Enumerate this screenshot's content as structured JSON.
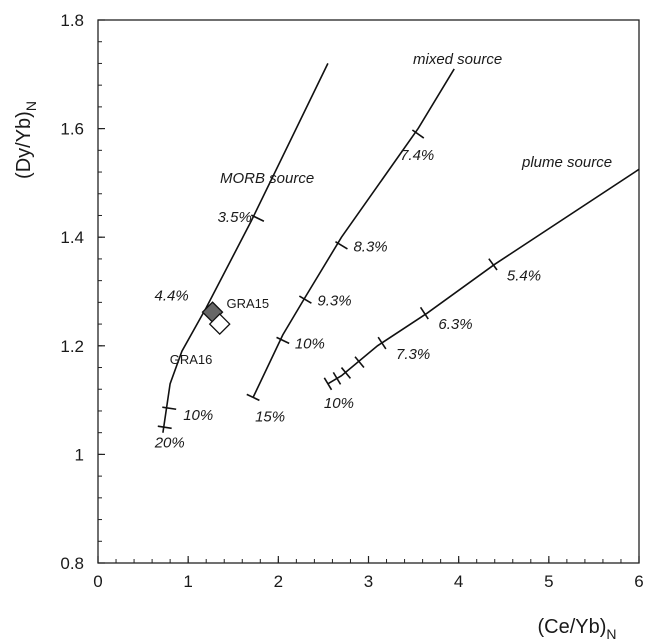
{
  "chart_data": {
    "type": "line",
    "xlabel": "(Ce/Yb)",
    "xlabel_sub": "N",
    "ylabel": "(Dy/Yb)",
    "ylabel_sub": "N",
    "xlim": [
      0,
      6
    ],
    "ylim": [
      0.8,
      1.8
    ],
    "x_ticks": [
      0,
      1,
      2,
      3,
      4,
      5,
      6
    ],
    "x_tick_labels": [
      "0",
      "1",
      "2",
      "3",
      "4",
      "5",
      "6"
    ],
    "y_ticks": [
      0.8,
      1.0,
      1.2,
      1.4,
      1.6,
      1.8
    ],
    "y_tick_labels": [
      "0.8",
      "1",
      "1.2",
      "1.4",
      "1.6",
      "1.8"
    ],
    "grid": false,
    "series": [
      {
        "name": "MORB source",
        "points": [
          [
            0.72,
            1.04
          ],
          [
            0.8,
            1.13
          ],
          [
            0.93,
            1.19
          ],
          [
            1.2,
            1.27
          ],
          [
            1.7,
            1.43
          ],
          [
            2.55,
            1.72
          ]
        ],
        "ticks": [
          {
            "x": 0.74,
            "y": 1.05,
            "label": "20%"
          },
          {
            "x": 0.79,
            "y": 1.085,
            "label": "10%"
          },
          {
            "x": 1.27,
            "y": 1.265,
            "label": "4.4%"
          },
          {
            "x": 1.77,
            "y": 1.435,
            "label": "3.5%"
          }
        ]
      },
      {
        "name": "mixed source",
        "points": [
          [
            1.72,
            1.105
          ],
          [
            2.05,
            1.22
          ],
          [
            2.3,
            1.29
          ],
          [
            2.7,
            1.4
          ],
          [
            3.55,
            1.6
          ],
          [
            3.95,
            1.71
          ]
        ],
        "ticks": [
          {
            "x": 1.72,
            "y": 1.105,
            "label": "15%"
          },
          {
            "x": 2.05,
            "y": 1.21,
            "label": "10%"
          },
          {
            "x": 2.3,
            "y": 1.285,
            "label": "9.3%"
          },
          {
            "x": 2.7,
            "y": 1.385,
            "label": "8.3%"
          },
          {
            "x": 3.55,
            "y": 1.59,
            "label": "7.4%"
          }
        ]
      },
      {
        "name": "plume source",
        "points": [
          [
            2.55,
            1.13
          ],
          [
            2.7,
            1.145
          ],
          [
            3.1,
            1.2
          ],
          [
            3.65,
            1.26
          ],
          [
            4.4,
            1.35
          ],
          [
            6.0,
            1.525
          ]
        ],
        "ticks": [
          {
            "x": 2.55,
            "y": 1.13,
            "label": "10%"
          },
          {
            "x": 2.65,
            "y": 1.14,
            "label": ""
          },
          {
            "x": 2.75,
            "y": 1.15,
            "label": ""
          },
          {
            "x": 2.9,
            "y": 1.17,
            "label": ""
          },
          {
            "x": 3.15,
            "y": 1.205,
            "label": "7.3%"
          },
          {
            "x": 3.62,
            "y": 1.26,
            "label": "6.3%"
          },
          {
            "x": 4.38,
            "y": 1.35,
            "label": "5.4%"
          }
        ]
      }
    ],
    "samples": [
      {
        "name": "GRA15",
        "x": 1.27,
        "y": 1.262,
        "fill": "#666666"
      },
      {
        "name": "GRA16",
        "x": 1.35,
        "y": 1.24,
        "fill": "#ffffff"
      }
    ]
  }
}
